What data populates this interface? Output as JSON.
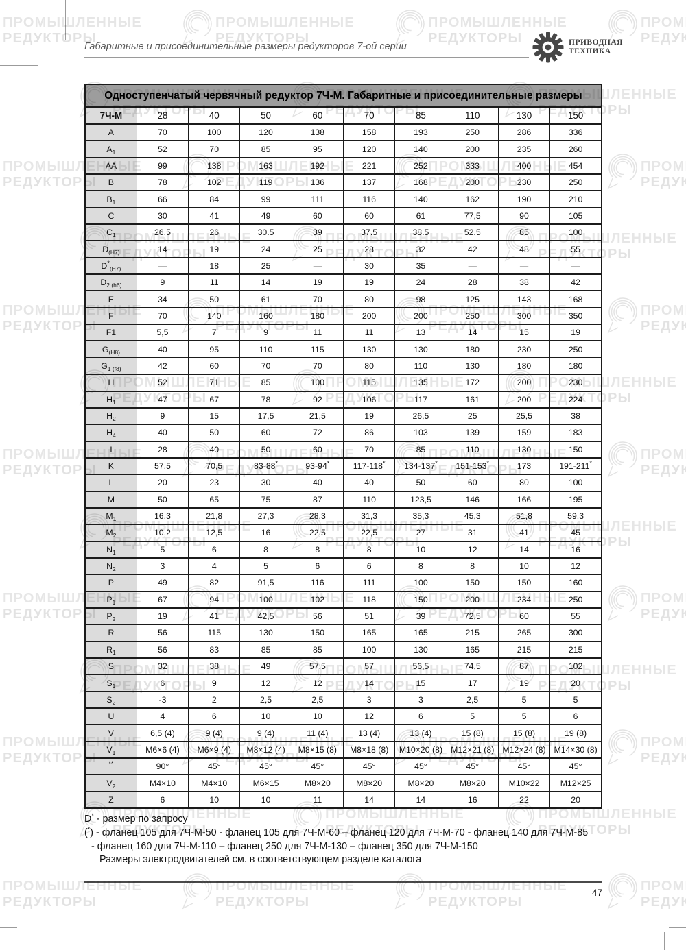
{
  "header": {
    "title": "Габаритные и присоединительные размеры редукторов 7-ой серии"
  },
  "logo": {
    "icon": "gear-icon",
    "line1": "ПРИВОДНАЯ",
    "line2": "ТЕХНИКА"
  },
  "watermark": {
    "icon": "watermark-swirl-icon",
    "line1": "ПРОМЫШЛЕННЫЕ",
    "line2": "РЕДУКТОРЫ"
  },
  "table": {
    "title": "Одноступенчатый червячный редуктор 7Ч-М. Габаритные и присоединительные размеры",
    "model_label": "7Ч-М",
    "sizes": [
      "28",
      "40",
      "50",
      "60",
      "70",
      "85",
      "110",
      "130",
      "150"
    ],
    "rows": [
      {
        "label": {
          "base": "A"
        },
        "values": [
          "70",
          "100",
          "120",
          "138",
          "158",
          "193",
          "250",
          "286",
          "336"
        ]
      },
      {
        "label": {
          "base": "A",
          "sub": "1"
        },
        "values": [
          "52",
          "70",
          "85",
          "95",
          "120",
          "140",
          "200",
          "235",
          "260"
        ]
      },
      {
        "label": {
          "base": "AA"
        },
        "values": [
          "99",
          "138",
          "163",
          "192",
          "221",
          "252",
          "333",
          "400",
          "454"
        ]
      },
      {
        "label": {
          "base": "B"
        },
        "values": [
          "78",
          "102",
          "119",
          "136",
          "137",
          "168",
          "200",
          "230",
          "250"
        ]
      },
      {
        "label": {
          "base": "B",
          "sub": "1"
        },
        "values": [
          "66",
          "84",
          "99",
          "111",
          "116",
          "140",
          "162",
          "190",
          "210"
        ]
      },
      {
        "label": {
          "base": "C"
        },
        "values": [
          "30",
          "41",
          "49",
          "60",
          "60",
          "61",
          "77,5",
          "90",
          "105"
        ]
      },
      {
        "label": {
          "base": "C",
          "sub": "1"
        },
        "values": [
          "26.5",
          "26",
          "30.5",
          "39",
          "37.5",
          "38.5",
          "52.5",
          "85",
          "100"
        ]
      },
      {
        "label": {
          "base": "D",
          "sub": "(H7)"
        },
        "values": [
          "14",
          "19",
          "24",
          "25",
          "28",
          "32",
          "42",
          "48",
          "55"
        ]
      },
      {
        "label": {
          "base": "D",
          "sup": "*",
          "sub": "(H7)"
        },
        "values": [
          "—",
          "18",
          "25",
          "—",
          "30",
          "35",
          "—",
          "—",
          "—"
        ]
      },
      {
        "label": {
          "base": "D",
          "sub": "2 (h6)"
        },
        "values": [
          "9",
          "11",
          "14",
          "19",
          "19",
          "24",
          "28",
          "38",
          "42"
        ]
      },
      {
        "label": {
          "base": "E"
        },
        "values": [
          "34",
          "50",
          "61",
          "70",
          "80",
          "98",
          "125",
          "143",
          "168"
        ]
      },
      {
        "label": {
          "base": "F"
        },
        "values": [
          "70",
          "140",
          "160",
          "180",
          "200",
          "200",
          "250",
          "300",
          "350"
        ]
      },
      {
        "label": {
          "base": "F1"
        },
        "values": [
          "5,5",
          "7",
          "9",
          "11",
          "11",
          "13",
          "14",
          "15",
          "19"
        ]
      },
      {
        "label": {
          "base": "G",
          "sub": "(H8)"
        },
        "values": [
          "40",
          "95",
          "110",
          "115",
          "130",
          "130",
          "180",
          "230",
          "250"
        ]
      },
      {
        "label": {
          "base": "G",
          "sub": "1 (f8)"
        },
        "values": [
          "42",
          "60",
          "70",
          "70",
          "80",
          "110",
          "130",
          "180",
          "180"
        ]
      },
      {
        "label": {
          "base": "H"
        },
        "values": [
          "52",
          "71",
          "85",
          "100",
          "115",
          "135",
          "172",
          "200",
          "230"
        ]
      },
      {
        "label": {
          "base": "H",
          "sub": "1"
        },
        "values": [
          "47",
          "67",
          "78",
          "92",
          "106",
          "117",
          "161",
          "200",
          "224"
        ]
      },
      {
        "label": {
          "base": "H",
          "sub": "2"
        },
        "values": [
          "9",
          "15",
          "17,5",
          "21,5",
          "19",
          "26,5",
          "25",
          "25,5",
          "38"
        ]
      },
      {
        "label": {
          "base": "H",
          "sub": "4"
        },
        "values": [
          "40",
          "50",
          "60",
          "72",
          "86",
          "103",
          "139",
          "159",
          "183"
        ]
      },
      {
        "label": {
          "base": "I"
        },
        "values": [
          "28",
          "40",
          "50",
          "60",
          "70",
          "85",
          "110",
          "130",
          "150"
        ]
      },
      {
        "label": {
          "base": "K"
        },
        "values": [
          "57,5",
          "70,5",
          "83-88*",
          "93-94*",
          "117-118*",
          "134-137*",
          "151-153*",
          "173",
          "191-211*"
        ]
      },
      {
        "label": {
          "base": "L"
        },
        "values": [
          "20",
          "23",
          "30",
          "40",
          "40",
          "50",
          "60",
          "80",
          "100"
        ]
      },
      {
        "label": {
          "base": "M"
        },
        "values": [
          "50",
          "65",
          "75",
          "87",
          "110",
          "123,5",
          "146",
          "166",
          "195"
        ]
      },
      {
        "label": {
          "base": "M",
          "sub": "1"
        },
        "values": [
          "16,3",
          "21,8",
          "27,3",
          "28,3",
          "31,3",
          "35,3",
          "45,3",
          "51,8",
          "59,3"
        ]
      },
      {
        "label": {
          "base": "M",
          "sub": "2"
        },
        "values": [
          "10,2",
          "12,5",
          "16",
          "22,5",
          "22,5",
          "27",
          "31",
          "41",
          "45"
        ]
      },
      {
        "label": {
          "base": "N",
          "sub": "1"
        },
        "values": [
          "5",
          "6",
          "8",
          "8",
          "8",
          "10",
          "12",
          "14",
          "16"
        ]
      },
      {
        "label": {
          "base": "N",
          "sub": "2"
        },
        "values": [
          "3",
          "4",
          "5",
          "6",
          "6",
          "8",
          "8",
          "10",
          "12"
        ]
      },
      {
        "label": {
          "base": "P"
        },
        "values": [
          "49",
          "82",
          "91,5",
          "116",
          "111",
          "100",
          "150",
          "150",
          "160"
        ]
      },
      {
        "label": {
          "base": "P",
          "sub": "1"
        },
        "values": [
          "67",
          "94",
          "100",
          "102",
          "118",
          "150",
          "200",
          "234",
          "250"
        ]
      },
      {
        "label": {
          "base": "P",
          "sub": "2"
        },
        "values": [
          "19",
          "41",
          "42,5",
          "56",
          "51",
          "39",
          "72,5",
          "60",
          "55"
        ]
      },
      {
        "label": {
          "base": "R"
        },
        "values": [
          "56",
          "115",
          "130",
          "150",
          "165",
          "165",
          "215",
          "265",
          "300"
        ]
      },
      {
        "label": {
          "base": "R",
          "sub": "1"
        },
        "values": [
          "56",
          "83",
          "85",
          "85",
          "100",
          "130",
          "165",
          "215",
          "215"
        ]
      },
      {
        "label": {
          "base": "S"
        },
        "values": [
          "32",
          "38",
          "49",
          "57,5",
          "57",
          "56,5",
          "74,5",
          "87",
          "102"
        ]
      },
      {
        "label": {
          "base": "S",
          "sub": "1"
        },
        "values": [
          "6",
          "9",
          "12",
          "12",
          "14",
          "15",
          "17",
          "19",
          "20"
        ]
      },
      {
        "label": {
          "base": "S",
          "sub": "2"
        },
        "values": [
          "-3",
          "2",
          "2,5",
          "2,5",
          "3",
          "3",
          "2,5",
          "5",
          "5"
        ]
      },
      {
        "label": {
          "base": "U"
        },
        "values": [
          "4",
          "6",
          "10",
          "10",
          "12",
          "6",
          "5",
          "5",
          "6"
        ]
      },
      {
        "label": {
          "base": "V"
        },
        "values": [
          "6,5 (4)",
          "9 (4)",
          "9 (4)",
          "11 (4)",
          "13 (4)",
          "13 (4)",
          "15 (8)",
          "15 (8)",
          "19 (8)"
        ]
      },
      {
        "label": {
          "base": "V",
          "sub": "1"
        },
        "values": [
          "M6×6 (4)",
          "M6×9 (4)",
          "M8×12 (4)",
          "M8×15 (8)",
          "M8×18 (8)",
          "M10×20 (8)",
          "M12×21 (8)",
          "M12×24 (8)",
          "M14×30 (8)"
        ]
      },
      {
        "label": {
          "base": "**"
        },
        "values": [
          "90°",
          "45°",
          "45°",
          "45°",
          "45°",
          "45°",
          "45°",
          "45°",
          "45°"
        ]
      },
      {
        "label": {
          "base": "V",
          "sub": "2"
        },
        "values": [
          "M4×10",
          "M4×10",
          "M6×15",
          "M8×20",
          "M8×20",
          "M8×20",
          "M8×20",
          "M10×22",
          "M12×25"
        ]
      },
      {
        "label": {
          "base": "Z"
        },
        "values": [
          "6",
          "10",
          "10",
          "11",
          "14",
          "14",
          "16",
          "22",
          "20"
        ]
      }
    ]
  },
  "footnotes": {
    "lines": [
      "D* - размер по запросу",
      "(*) - фланец 105 для 7Ч-М-50 - фланец 105 для 7Ч-М-60 – фланец 120 для 7Ч-М-70 - фланец 140 для 7Ч-М-85",
      "- фланец 160 для 7Ч-М-110 – фланец 250 для 7Ч-М-130 – фланец 350 для 7Ч-М-150",
      "Размеры электродвигателей см. в соответствующем разделе каталога"
    ]
  },
  "page": {
    "number": "47"
  },
  "colors": {
    "table_title_bg": "#9d9d9d",
    "label_cell_bg": "#dcdcdc",
    "border": "#1b1b1b",
    "header_rule": "#9a9a9a",
    "watermark": "#e2e2e2",
    "logo_dark": "#474747"
  }
}
